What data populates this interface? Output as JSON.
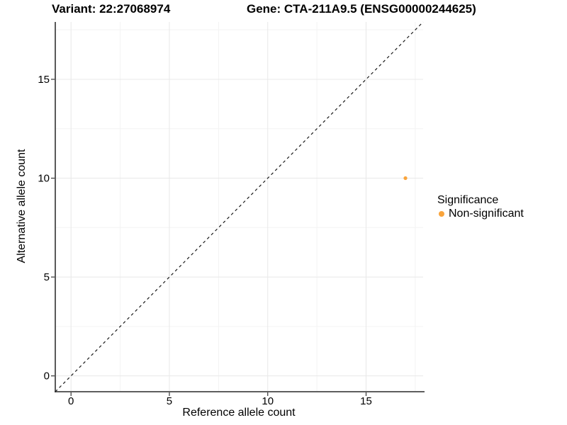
{
  "header": {
    "variant_title": "Variant: 22:27068974",
    "gene_title": "Gene: CTA-211A9.5 (ENSG00000244625)"
  },
  "chart_data": {
    "type": "scatter",
    "xlabel": "Reference allele count",
    "ylabel": "Alternative allele count",
    "xlim": [
      -0.8,
      17.9
    ],
    "ylim": [
      -0.8,
      17.9
    ],
    "x_ticks": [
      0,
      5,
      10,
      15
    ],
    "y_ticks": [
      0,
      5,
      10,
      15
    ],
    "x_minor_ticks": [
      2.5,
      7.5,
      12.5,
      17.5
    ],
    "y_minor_ticks": [
      2.5,
      7.5,
      12.5,
      17.5
    ],
    "grid": "major and minor gridlines, light gray on white panel",
    "identity_line": {
      "type": "y=x",
      "style": "dashed",
      "color": "#1a1a1a"
    },
    "series": [
      {
        "name": "Non-significant",
        "color": "#F9A43C",
        "points": [
          {
            "x": 17,
            "y": 10
          }
        ]
      }
    ],
    "legend": {
      "title": "Significance",
      "position": "right",
      "entries": [
        {
          "label": "Non-significant",
          "color": "#F9A43C"
        }
      ]
    }
  },
  "colors": {
    "background": "#FFFFFF",
    "axis_line": "#474747",
    "tick_mark": "#333333",
    "grid_major": "#E8E8E8",
    "grid_minor": "#F3F3F3",
    "text": "#000000",
    "accent_orange": "#F9A43C"
  }
}
